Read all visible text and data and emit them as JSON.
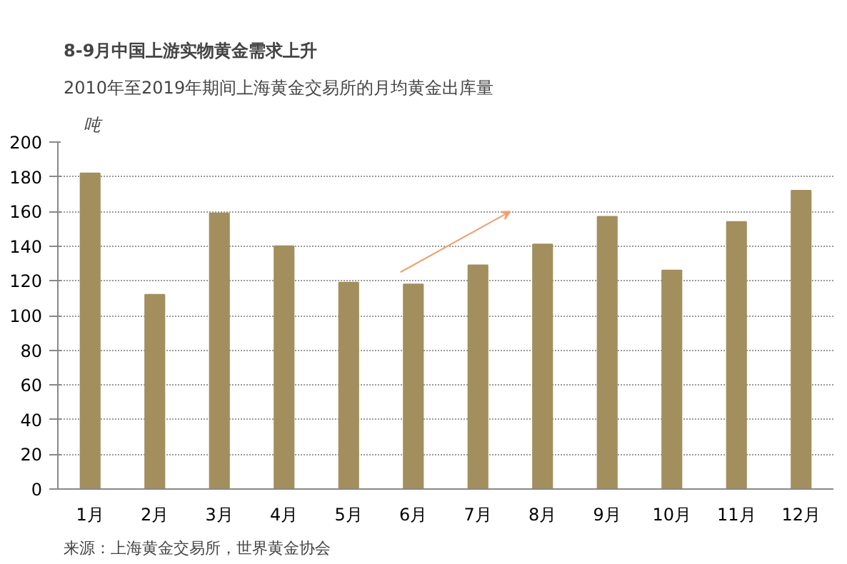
{
  "chart_data": {
    "type": "bar",
    "title": "8-9月中国上游实物黄金需求上升",
    "subtitle": "2010年至2019年期间上海黄金交易所的月均黄金出库量",
    "ylabel": "吨",
    "categories": [
      "1月",
      "2月",
      "3月",
      "4月",
      "5月",
      "6月",
      "7月",
      "8月",
      "9月",
      "10月",
      "11月",
      "12月"
    ],
    "values": [
      182,
      112,
      159,
      140,
      119,
      118,
      129,
      141,
      157,
      126,
      154,
      172
    ],
    "color": "#a38f5e",
    "ylim": [
      0,
      200
    ],
    "yticks": [
      0,
      20,
      40,
      60,
      80,
      100,
      120,
      140,
      160,
      180,
      200
    ],
    "grid": "y",
    "annotations": [
      "来源：上海黄金交易所，世界黄金协会"
    ]
  }
}
